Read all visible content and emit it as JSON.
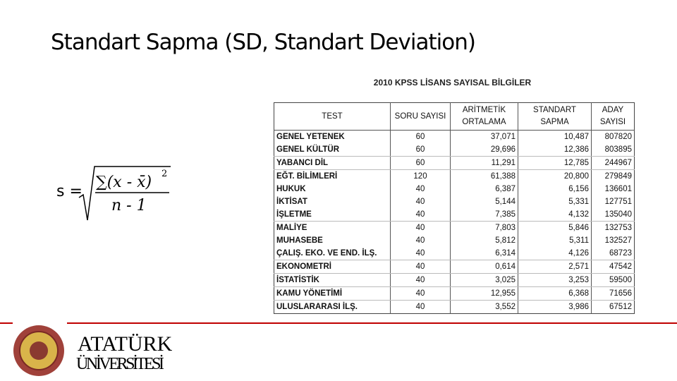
{
  "header": {
    "title": "Standart Sapma (SD, Standart Deviation)"
  },
  "formula": {
    "lhs": "s =",
    "numerator": "∑(x - x̄)",
    "exponent": "2",
    "denominator": "n - 1"
  },
  "table": {
    "title": "2010 KPSS LİSANS SAYISAL BİLGİLER",
    "columns": [
      "TEST",
      "SORU SAYISI",
      "ARİTMETİK ORTALAMA",
      "STANDART SAPMA",
      "ADAY SAYISI"
    ],
    "rows": [
      [
        "GENEL YETENEK",
        "60",
        "37,071",
        "10,487",
        "807820"
      ],
      [
        "GENEL KÜLTÜR",
        "60",
        "29,696",
        "12,386",
        "803895"
      ],
      [
        "YABANCI DİL",
        "60",
        "11,291",
        "12,785",
        "244967"
      ],
      [
        "EĞT. BİLİMLERİ",
        "120",
        "61,388",
        "20,800",
        "279849"
      ],
      [
        "HUKUK",
        "40",
        "6,387",
        "6,156",
        "136601"
      ],
      [
        "İKTİSAT",
        "40",
        "5,144",
        "5,331",
        "127751"
      ],
      [
        "İŞLETME",
        "40",
        "7,385",
        "4,132",
        "135040"
      ],
      [
        "MALİYE",
        "40",
        "7,803",
        "5,846",
        "132753"
      ],
      [
        "MUHASEBE",
        "40",
        "5,812",
        "5,311",
        "132527"
      ],
      [
        "ÇALIŞ. EKO. VE END. İLŞ.",
        "40",
        "6,314",
        "4,126",
        "68723"
      ],
      [
        "EKONOMETRİ",
        "40",
        "0,614",
        "2,571",
        "47542"
      ],
      [
        "İSTATİSTİK",
        "40",
        "3,025",
        "3,253",
        "59500"
      ],
      [
        "KAMU YÖNETİMİ",
        "40",
        "12,955",
        "6,368",
        "71656"
      ],
      [
        "ULUSLARARASI İLŞ.",
        "40",
        "3,552",
        "3,986",
        "67512"
      ]
    ]
  },
  "logo": {
    "line1": "ATATÜRK",
    "line2": "ÜNİVERSİTESİ"
  }
}
